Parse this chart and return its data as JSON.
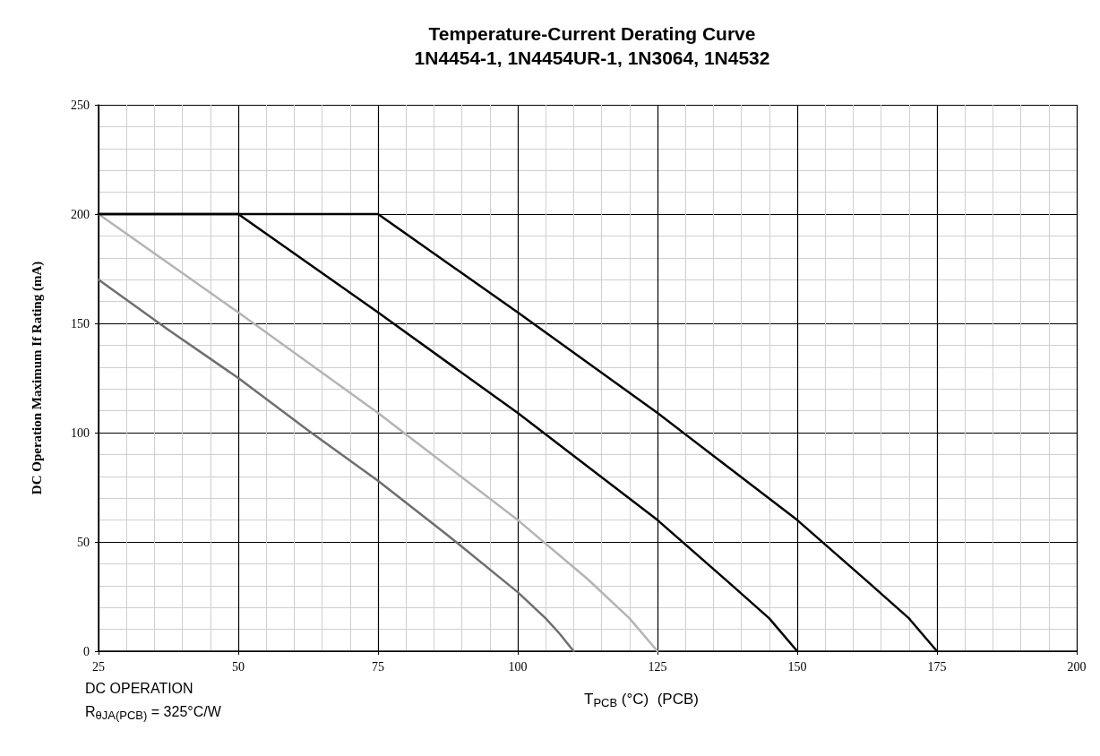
{
  "chart_data": {
    "type": "line",
    "title": "Temperature-Current Derating Curve",
    "subtitle": "1N4454-1, 1N4454UR-1, 1N3064, 1N4532",
    "xlabel": "T$_{PCB}$ (°C)  (PCB)",
    "ylabel": "DC Operation Maximum If Rating (mA)",
    "annotations": [
      "DC OPERATION",
      "R$_{θJA(PCB)}$ = 325°C/W"
    ],
    "series": [
      {
        "color": "#6e6e6e",
        "x": [
          25,
          37.5,
          50,
          62.5,
          75,
          87.5,
          100,
          105,
          107.5,
          110
        ],
        "values": [
          170,
          147,
          125,
          101,
          78,
          53,
          27,
          15,
          8,
          0
        ]
      },
      {
        "color": "#b4b4b4",
        "x": [
          25,
          50,
          75,
          100,
          112.5,
          120,
          125
        ],
        "values": [
          200,
          155,
          109,
          60,
          33,
          15,
          0
        ]
      },
      {
        "color": "#000000",
        "x": [
          25,
          50,
          75,
          100,
          125,
          137.5,
          145,
          150
        ],
        "values": [
          200,
          200,
          155,
          109,
          60,
          32,
          15,
          0
        ]
      },
      {
        "color": "#000000",
        "x": [
          25,
          75,
          100,
          125,
          150,
          162.5,
          170,
          175
        ],
        "values": [
          200,
          200,
          155,
          109,
          60,
          32,
          15,
          0
        ]
      }
    ],
    "xlim": [
      25,
      200
    ],
    "xticks": [
      25,
      50,
      75,
      100,
      125,
      150,
      175,
      200
    ],
    "ylim": [
      0,
      250
    ],
    "yticks": [
      0,
      50,
      100,
      150,
      200,
      250
    ],
    "grid": true,
    "marker": "none",
    "line_style": "solid"
  }
}
